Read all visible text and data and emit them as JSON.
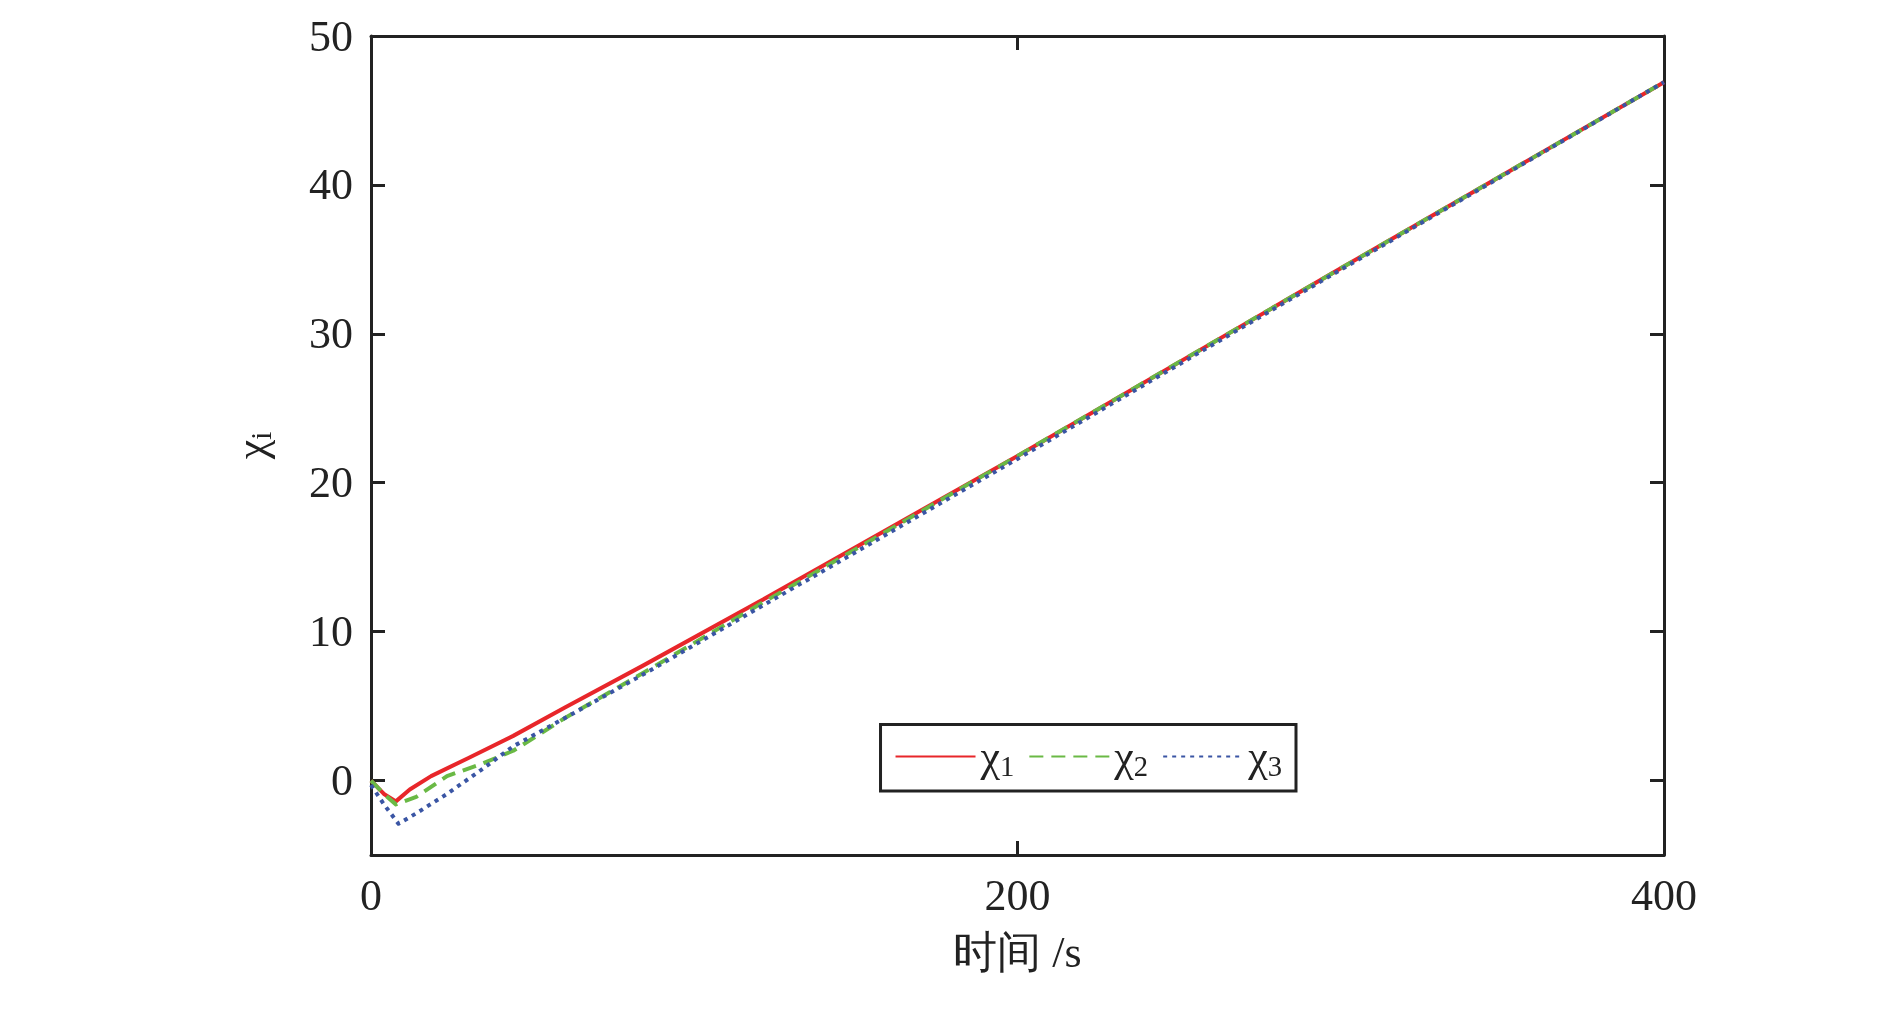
{
  "chart_data": {
    "type": "line",
    "xlabel": "时间 /s",
    "ylabel": "χ$_{i}$",
    "xlim": [
      0,
      400
    ],
    "xticks": [
      0,
      200,
      400
    ],
    "ylim": [
      -5,
      50
    ],
    "yticks": [
      0,
      10,
      20,
      30,
      40,
      50
    ],
    "grid": false,
    "legend": "bottom right",
    "marker": "none",
    "series": [
      {
        "name": "χ$_{1}$",
        "color": "#e8262a",
        "line_style": "solid",
        "x": [
          0,
          4,
          7.7,
          12,
          18.6,
          30,
          44,
          60,
          84,
          120,
          200,
          300,
          400
        ],
        "values": [
          0,
          -0.9,
          -1.4,
          -0.6,
          0.3,
          1.5,
          3.0,
          4.9,
          7.7,
          12.0,
          21.8,
          34.4,
          46.9
        ]
      },
      {
        "name": "χ$_{2}$",
        "color": "#6ab945",
        "line_style": "dashed",
        "x": [
          0,
          4,
          7.7,
          14,
          23.5,
          34,
          44,
          60,
          84,
          120,
          200,
          300,
          400
        ],
        "values": [
          0,
          -0.9,
          -1.6,
          -1.1,
          0.3,
          1.1,
          2.0,
          4.2,
          7.2,
          11.8,
          21.8,
          34.4,
          46.9
        ]
      },
      {
        "name": "χ$_{3}$",
        "color": "#3a55a4",
        "line_style": "dotted",
        "x": [
          0,
          4,
          8.5,
          14,
          23.5,
          34,
          44,
          60,
          84,
          120,
          200,
          300,
          400
        ],
        "values": [
          -0.3,
          -1.6,
          -2.9,
          -2.2,
          -0.9,
          0.7,
          2.3,
          4.2,
          7.1,
          11.6,
          21.6,
          34.3,
          46.9
        ]
      }
    ]
  }
}
